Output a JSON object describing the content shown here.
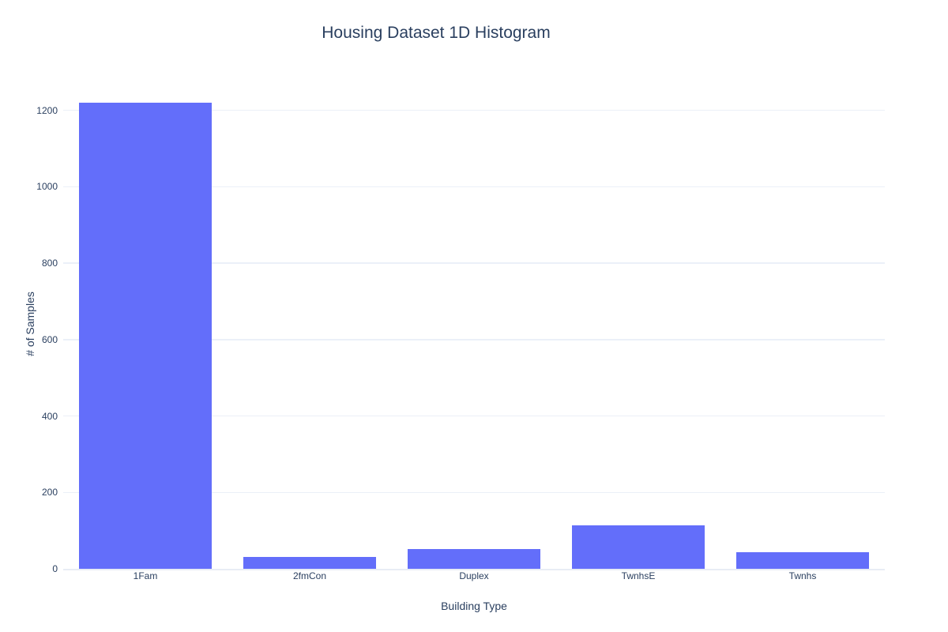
{
  "title": "Housing Dataset 1D Histogram",
  "chart_data": {
    "type": "bar",
    "title": "Housing Dataset 1D Histogram",
    "xlabel": "Building Type",
    "ylabel": "# of Samples",
    "categories": [
      "1Fam",
      "2fmCon",
      "Duplex",
      "TwnhsE",
      "Twnhs"
    ],
    "values": [
      1220,
      31,
      52,
      114,
      43
    ],
    "yticks": [
      0,
      200,
      400,
      600,
      800,
      1000,
      1200
    ],
    "ylim": [
      0,
      1284
    ],
    "grid": true,
    "legend_position": "none",
    "colors": {
      "bar": "#636efa",
      "grid": "#ebf0f8",
      "zeroline": "#e8edf5",
      "font": "#2a3f5f",
      "background": "#ffffff"
    }
  }
}
